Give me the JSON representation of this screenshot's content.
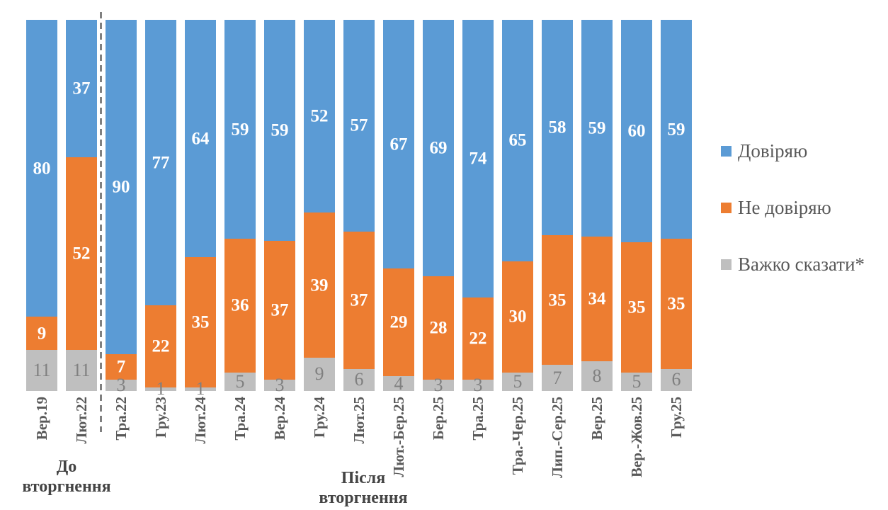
{
  "chart_data": {
    "type": "bar",
    "variant": "stacked-100-percent-column",
    "grid": false,
    "y_axis_visible": false,
    "x_label_rotation_deg": -90,
    "categories": [
      "Вер.19",
      "Лют.22",
      "Тра.22",
      "Гру.23",
      "Лют.24",
      "Тра.24",
      "Вер.24",
      "Гру.24",
      "Лют.25",
      "Лют.-Бер.25",
      "Бер.25",
      "Тра.25",
      "Тра.-Чер.25",
      "Лип.-Сер.25",
      "Вер.25",
      "Вер.-Жов.25",
      "Гру.25"
    ],
    "series": [
      {
        "key": "trust",
        "name": "Довіряю",
        "color": "#5B9BD5",
        "label_color": "#FFFFFF",
        "values": [
          80,
          37,
          90,
          77,
          64,
          59,
          59,
          52,
          57,
          67,
          69,
          74,
          65,
          58,
          59,
          60,
          59
        ]
      },
      {
        "key": "no-trust",
        "name": "Не довіряю",
        "color": "#ED7D31",
        "label_color": "#FFFFFF",
        "values": [
          9,
          52,
          7,
          22,
          35,
          36,
          37,
          39,
          37,
          29,
          28,
          22,
          30,
          35,
          34,
          35,
          35
        ]
      },
      {
        "key": "hard-to-say",
        "name": "Важко сказати*",
        "color": "#BFBFBF",
        "label_color": "#808080",
        "values": [
          11,
          11,
          3,
          1,
          1,
          5,
          3,
          9,
          6,
          4,
          3,
          3,
          5,
          7,
          8,
          5,
          6
        ]
      }
    ],
    "legend_position": "right",
    "divider": {
      "style": "dashed",
      "color": "#808080",
      "after_category_index": 1
    },
    "annotations": [
      {
        "line1": "До",
        "line2": "вторгнення",
        "refers_to": "categories before divider"
      },
      {
        "line1": "Після",
        "line2": "вторгнення",
        "refers_to": "categories after divider"
      }
    ]
  }
}
